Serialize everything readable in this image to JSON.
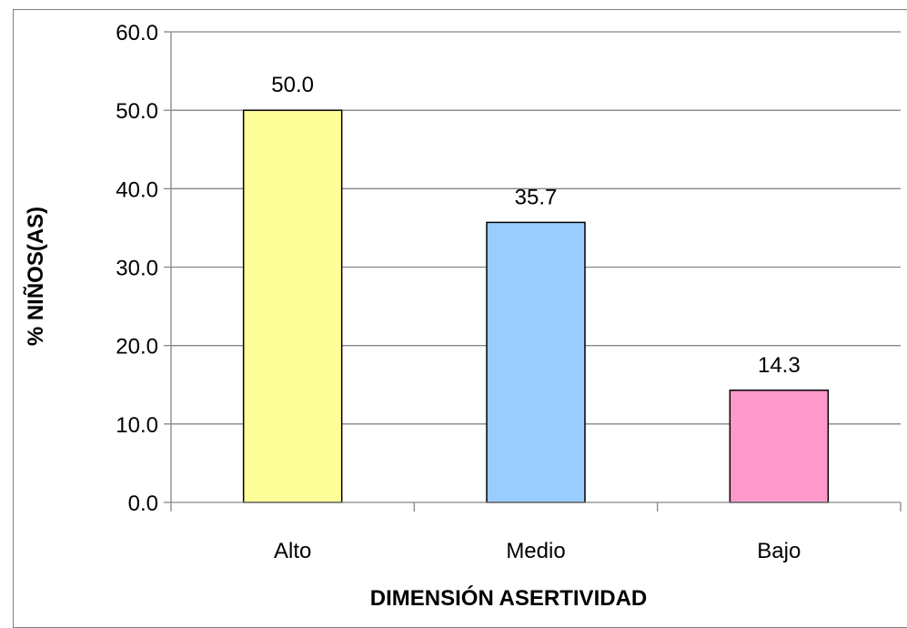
{
  "chart_data": {
    "type": "bar",
    "title": "",
    "xlabel": "DIMENSIÓN ASERTIVIDAD",
    "ylabel": "% NIÑOS(AS)",
    "categories": [
      "Alto",
      "Medio",
      "Bajo"
    ],
    "values": [
      50.0,
      35.7,
      14.3
    ],
    "value_labels": [
      "50.0",
      "35.7",
      "14.3"
    ],
    "ylim": [
      0,
      60
    ],
    "yticks": [
      "0.0",
      "10.0",
      "20.0",
      "30.0",
      "40.0",
      "50.0",
      "60.0"
    ],
    "grid": true,
    "legend": "none",
    "colors": [
      "#ffff99",
      "#99ccff",
      "#ff99cc"
    ]
  }
}
